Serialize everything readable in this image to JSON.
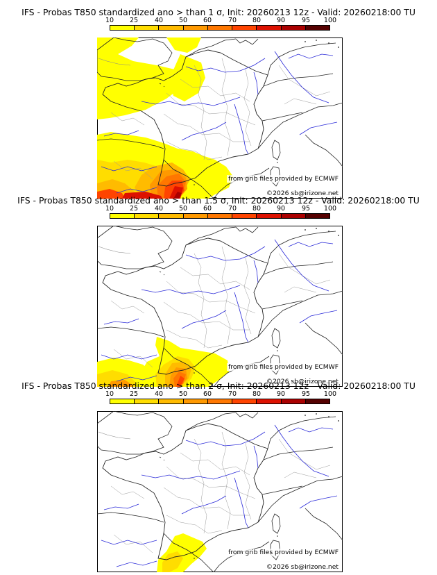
{
  "scale": {
    "ticks": [
      "10",
      "25",
      "40",
      "50",
      "60",
      "70",
      "80",
      "90",
      "95",
      "100"
    ],
    "colors": [
      "#ffff00",
      "#ffdd00",
      "#ffbb00",
      "#ff9900",
      "#ff7700",
      "#ff4400",
      "#dd1100",
      "#aa0000",
      "#550000"
    ]
  },
  "credits": {
    "source": "from grib files provided by ECMWF",
    "copyright": "©2026 sb@irizone.net"
  },
  "panels": [
    {
      "title": "IFS - Probas T850  standardized ano > than 1 σ, Init: 20260213 12z - Valid: 20260218:00 TU"
    },
    {
      "title": "IFS - Probas T850  standardized ano > than 1.5 σ, Init: 20260213 12z - Valid: 20260218:00 TU"
    },
    {
      "title": "IFS - Probas T850  standardized ano > than 2 σ, Init: 20260213 12z - Valid: 20260218:00 TU"
    }
  ]
}
